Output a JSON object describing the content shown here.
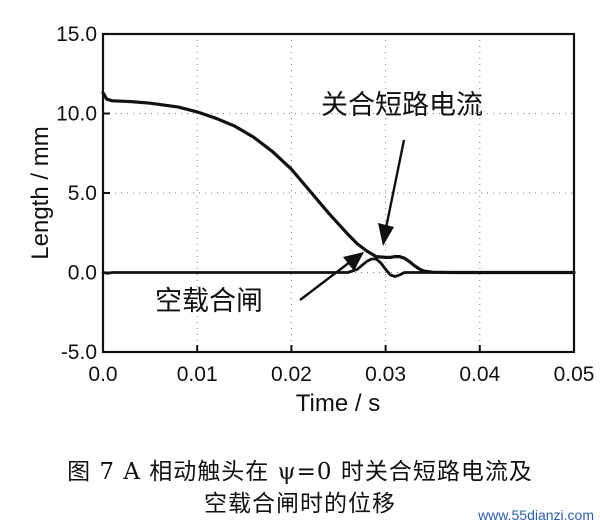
{
  "chart_data": {
    "type": "line",
    "xlabel": "Time / s",
    "ylabel": "Length / mm",
    "xlim": [
      0.0,
      0.05
    ],
    "ylim": [
      -5.0,
      15.0
    ],
    "x_ticks": [
      "0.0",
      "0.01",
      "0.02",
      "0.03",
      "0.04",
      "0.05"
    ],
    "y_ticks": [
      "-5.0",
      "0.0",
      "5.0",
      "10.0",
      "15.0"
    ],
    "grid": "dotted",
    "series": [
      {
        "name": "关合短路电流",
        "x": [
          0.0,
          0.0004,
          0.001,
          0.003,
          0.005,
          0.008,
          0.01,
          0.012,
          0.014,
          0.016,
          0.018,
          0.02,
          0.022,
          0.024,
          0.026,
          0.027,
          0.028,
          0.029,
          0.03,
          0.0305,
          0.031,
          0.0315,
          0.032,
          0.0325,
          0.033,
          0.0335,
          0.034,
          0.035,
          0.037,
          0.04,
          0.045,
          0.05
        ],
        "y": [
          11.3,
          10.9,
          10.8,
          10.75,
          10.65,
          10.4,
          10.1,
          9.7,
          9.2,
          8.5,
          7.6,
          6.5,
          5.1,
          3.7,
          2.4,
          1.8,
          1.35,
          1.0,
          0.95,
          0.95,
          1.0,
          1.0,
          0.9,
          0.7,
          0.45,
          0.25,
          0.1,
          0.02,
          0.0,
          0.0,
          0.0,
          0.0
        ]
      },
      {
        "name": "空载合闸",
        "x": [
          0.0,
          0.0005,
          0.001,
          0.002,
          0.003,
          0.004,
          0.026,
          0.027,
          0.0275,
          0.028,
          0.0285,
          0.029,
          0.0295,
          0.03,
          0.0305,
          0.031,
          0.0315,
          0.032,
          0.033,
          0.035,
          0.04,
          0.045,
          0.05
        ],
        "y": [
          0.0,
          -0.05,
          0.0,
          0.0,
          0.0,
          0.0,
          0.0,
          0.2,
          0.45,
          0.7,
          0.85,
          0.85,
          0.6,
          0.2,
          -0.15,
          -0.25,
          -0.15,
          0.0,
          0.0,
          0.0,
          0.0,
          0.0,
          0.0
        ]
      }
    ],
    "annotations": [
      {
        "text": "关合短路电流"
      },
      {
        "text": "空载合闸"
      }
    ]
  },
  "caption": {
    "line1": "图 7   A 相动触头在 ψ=0 时关合短路电流及",
    "line2": "空载合闸时的位移"
  },
  "watermark": "www.55dianzi.com",
  "colors": {
    "line": "#111111",
    "grid": "#7a7a7a",
    "arrow": "#111111"
  }
}
